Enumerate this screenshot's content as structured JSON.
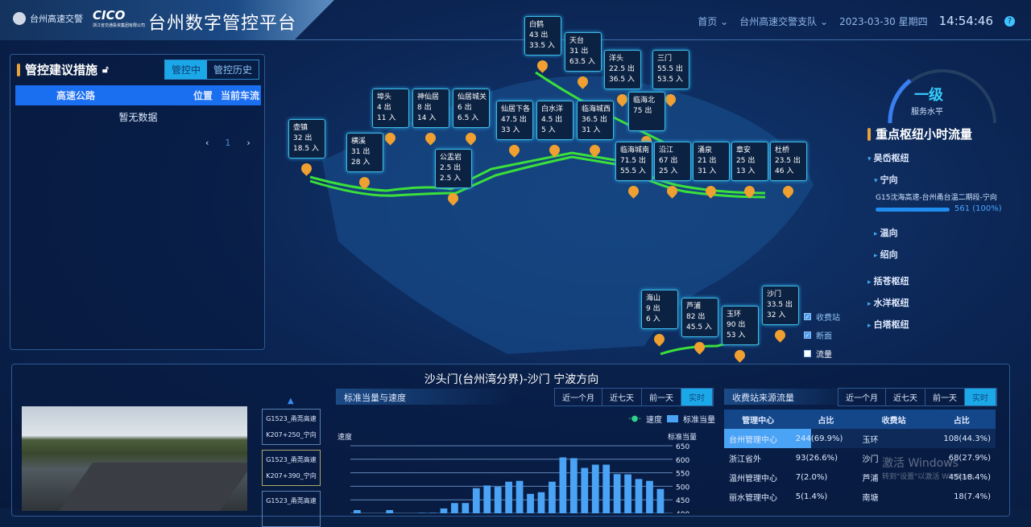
{
  "header": {
    "org": "台州高速交警",
    "cico": "CICO",
    "cico_sub": "浙江省交通投资集团有限公司",
    "title": "台州数字管控平台",
    "nav_home": "首页",
    "nav_unit": "台州高速交警支队",
    "date": "2023-03-30 星期四",
    "time": "14:54:46",
    "help": "?"
  },
  "left_panel": {
    "title": "管控建议措施",
    "tabs": [
      "管控中",
      "管控历史"
    ],
    "active_tab": "管控中",
    "columns": [
      "高速公路",
      "位置",
      "当前车流"
    ],
    "empty_text": "暂无数据",
    "page": "1"
  },
  "map": {
    "stations": [
      {
        "name": "壶镇",
        "out": "32 出",
        "in": "18.5 入"
      },
      {
        "name": "横溪",
        "out": "31 出",
        "in": "28 入"
      },
      {
        "name": "埠头",
        "out": "4 出",
        "in": "11 入"
      },
      {
        "name": "神仙居",
        "out": "8 出",
        "in": "14 入"
      },
      {
        "name": "仙居城关",
        "out": "6 出",
        "in": "6.5 入"
      },
      {
        "name": "公盂岩",
        "out": "2.5 出",
        "in": "2.5 入"
      },
      {
        "name": "仙居下各",
        "out": "47.5 出",
        "in": "33 入"
      },
      {
        "name": "白水洋",
        "out": "4.5 出",
        "in": "5 入"
      },
      {
        "name": "白鹤",
        "out": "43 出",
        "in": "33.5 入"
      },
      {
        "name": "天台",
        "out": "31 出",
        "in": "63.5 入"
      },
      {
        "name": "临海城西",
        "out": "36.5 出",
        "in": "31 入"
      },
      {
        "name": "临海城南",
        "out": "71.5 出",
        "in": "55.5 入"
      },
      {
        "name": "洋头",
        "out": "22.5 出",
        "in": "36.5 入"
      },
      {
        "name": "三门",
        "out": "55.5 出",
        "in": "53.5 入"
      },
      {
        "name": "临海北",
        "out": "75 出",
        "in": ""
      },
      {
        "name": "沿江",
        "out": "67 出",
        "in": "25 入"
      },
      {
        "name": "涌泉",
        "out": "21 出",
        "in": "31 入"
      },
      {
        "name": "章安",
        "out": "25 出",
        "in": "13 入"
      },
      {
        "name": "杜桥",
        "out": "23.5 出",
        "in": "46 入"
      },
      {
        "name": "海山",
        "out": "9 出",
        "in": "6 入"
      },
      {
        "name": "芦浦",
        "out": "82 出",
        "in": "45.5 入"
      },
      {
        "name": "玉环",
        "out": "90 出",
        "in": "53 入"
      },
      {
        "name": "沙门",
        "out": "33.5 出",
        "in": "32 入"
      }
    ],
    "layers": [
      {
        "label": "收费站",
        "checked": true
      },
      {
        "label": "断面",
        "checked": true
      },
      {
        "label": "流量",
        "checked": false
      }
    ],
    "route_color": "#3be03b",
    "marker_color": "#f0a030"
  },
  "right_panel": {
    "level": "一级",
    "level_label": "服务水平",
    "title": "重点枢纽小时流量",
    "hub_open": "吴岙枢纽",
    "dir_open": "宁向",
    "route": "G15沈海高速-台州甬台温二期段-宁向",
    "value": "561 (100%)",
    "progress_pct": 100,
    "dirs": [
      "温向",
      "绍向"
    ],
    "hubs": [
      "括苍枢纽",
      "水洋枢纽",
      "白塔枢纽"
    ]
  },
  "bottom": {
    "title": "沙头门(台州湾分界)-沙门 宁波方向",
    "cameras": [
      [
        "G1523_甬莞高速",
        "K207+250_宁向"
      ],
      [
        "G1523_甬莞高速",
        "K207+390_宁向"
      ],
      [
        "G1523_甬莞高速",
        ""
      ]
    ],
    "chart_title": "标准当量与速度",
    "ranges": [
      "近一个月",
      "近七天",
      "前一天",
      "实时"
    ],
    "active_range": "实时",
    "table_title": "收费站来源流量",
    "table_cols": [
      "管理中心",
      "占比",
      "收费站",
      "占比"
    ],
    "centers": [
      [
        "台州管理中心",
        "244(69.9%)"
      ],
      [
        "浙江省外",
        "93(26.6%)"
      ],
      [
        "温州管理中心",
        "7(2.0%)"
      ],
      [
        "丽水管理中心",
        "5(1.4%)"
      ]
    ],
    "stations": [
      [
        "玉环",
        "108(44.3%)"
      ],
      [
        "沙门",
        "68(27.9%)"
      ],
      [
        "芦浦",
        "45(18.4%)"
      ],
      [
        "南塘",
        "18(7.4%)"
      ]
    ],
    "watermark": [
      "激活 Windows",
      "转到\"设置\"以激活 Windows。"
    ]
  },
  "chart_data": {
    "type": "bar",
    "series": [
      {
        "name": "标准当量",
        "values": [
          412,
          395,
          395,
          412,
          395,
          395,
          402,
          402,
          418,
          438,
          438,
          493,
          503,
          498,
          517,
          520,
          472,
          478,
          517,
          607,
          604,
          568,
          580,
          580,
          545,
          544,
          527,
          520,
          490
        ]
      },
      {
        "name": "速度",
        "values": []
      }
    ],
    "legend": [
      "速度",
      "标准当量"
    ],
    "ylabel_left": "速度",
    "ylabel_right": "标准当量",
    "yticks": [
      650,
      600,
      550,
      500,
      450,
      400
    ],
    "ylim": [
      400,
      650
    ],
    "color": "#4aa3f5"
  }
}
